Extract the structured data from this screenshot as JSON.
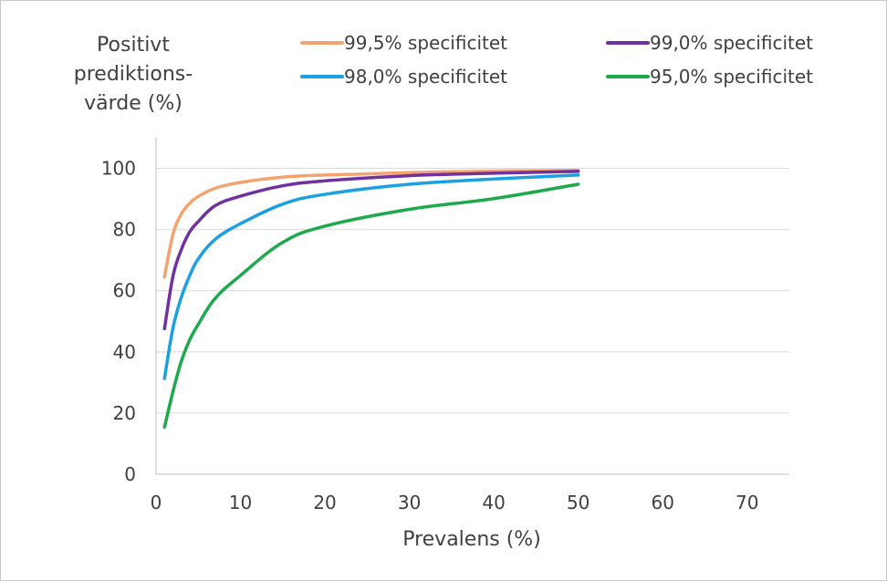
{
  "chart_data": {
    "type": "line",
    "title": "",
    "ylabel_lines": [
      "Positivt",
      "prediktions-",
      "värde (%)"
    ],
    "xlabel": "Prevalens (%)",
    "xlim": [
      0,
      75
    ],
    "ylim": [
      0,
      110
    ],
    "xticks": [
      "0",
      "10",
      "20",
      "30",
      "40",
      "50",
      "60",
      "70"
    ],
    "yticks": [
      "0",
      "20",
      "40",
      "60",
      "80",
      "100"
    ],
    "grid": "horizontal",
    "legend_position": "top",
    "series": [
      {
        "name": "99,5% specificitet",
        "color": "#f4a36f",
        "x": [
          1,
          2,
          3,
          4,
          5,
          7,
          10,
          15,
          20,
          30,
          40,
          50
        ],
        "y": [
          64.5,
          78.4,
          85.1,
          88.6,
          90.8,
          93.5,
          95.4,
          97.1,
          97.8,
          98.6,
          99.1,
          99.3
        ]
      },
      {
        "name": "99,0% specificitet",
        "color": "#7030a0",
        "x": [
          1,
          2,
          3,
          4,
          5,
          7,
          10,
          15,
          20,
          30,
          40,
          50
        ],
        "y": [
          47.6,
          64.7,
          73.5,
          79.3,
          82.6,
          87.8,
          90.9,
          94.3,
          95.9,
          97.6,
          98.4,
          99.0
        ]
      },
      {
        "name": "98,0% specificitet",
        "color": "#1ba1e2",
        "x": [
          1,
          2,
          3,
          4,
          5,
          7,
          10,
          15,
          20,
          30,
          40,
          50
        ],
        "y": [
          31.3,
          47.8,
          57.9,
          65.0,
          70.4,
          76.8,
          81.9,
          88.3,
          91.5,
          94.8,
          96.5,
          97.8
        ]
      },
      {
        "name": "95,0% specificitet",
        "color": "#1ea94c",
        "x": [
          1,
          2,
          3,
          4,
          5,
          7,
          10,
          15,
          20,
          30,
          40,
          50
        ],
        "y": [
          15.4,
          27.0,
          37.0,
          44.0,
          49.0,
          57.5,
          65.0,
          75.8,
          81.1,
          86.6,
          90.1,
          94.8
        ]
      }
    ]
  }
}
